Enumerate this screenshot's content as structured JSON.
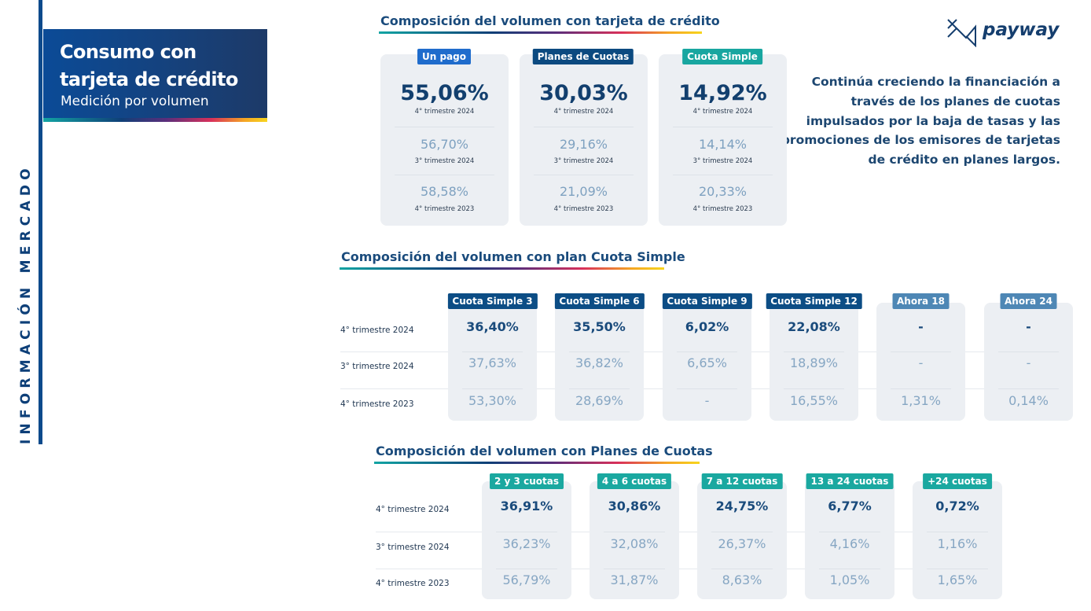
{
  "sidebar": {
    "vertical_label": "INFORMACIÓN MERCADO"
  },
  "header": {
    "title_line1": "Consumo con",
    "title_line2": "tarjeta de crédito",
    "subtitle": "Medición por volumen"
  },
  "logo": {
    "text": "payway"
  },
  "note": "Continúa creciendo la financiación a través de los planes de cuotas impulsados por la baja de tasas y las promociones de los emisores de tarjetas de crédito en planes largos.",
  "colors": {
    "navy": "#0c4a80",
    "blue": "#1f6ccc",
    "teal": "#18a6a0",
    "steel": "#4e87b5"
  },
  "section1": {
    "title": "Composición del volumen con tarjeta de crédito",
    "cards": [
      {
        "label": "Un pago",
        "color": "#1f6ccc",
        "values": [
          {
            "value": "55,06%",
            "period": "4° trimestre 2024"
          },
          {
            "value": "56,70%",
            "period": "3° trimestre 2024"
          },
          {
            "value": "58,58%",
            "period": "4° trimestre 2023"
          }
        ]
      },
      {
        "label": "Planes de Cuotas",
        "color": "#0c4a80",
        "values": [
          {
            "value": "30,03%",
            "period": "4° trimestre 2024"
          },
          {
            "value": "29,16%",
            "period": "3° trimestre 2024"
          },
          {
            "value": "21,09%",
            "period": "4° trimestre 2023"
          }
        ]
      },
      {
        "label": "Cuota Simple",
        "color": "#18a6a0",
        "values": [
          {
            "value": "14,92%",
            "period": "4° trimestre 2024"
          },
          {
            "value": "14,14%",
            "period": "3° trimestre 2024"
          },
          {
            "value": "20,33%",
            "period": "4° trimestre 2023"
          }
        ]
      }
    ]
  },
  "section2": {
    "title": "Composición del volumen con plan Cuota Simple",
    "rows": [
      "4° trimestre 2024",
      "3° trimestre 2024",
      "4° trimestre 2023"
    ],
    "columns": [
      {
        "label": "Cuota Simple 3",
        "color": "#0c4d85",
        "values": [
          "36,40%",
          "37,63%",
          "53,30%"
        ]
      },
      {
        "label": "Cuota Simple 6",
        "color": "#0c4d85",
        "values": [
          "35,50%",
          "36,82%",
          "28,69%"
        ]
      },
      {
        "label": "Cuota Simple 9",
        "color": "#0c4d85",
        "values": [
          "6,02%",
          "6,65%",
          "-"
        ]
      },
      {
        "label": "Cuota Simple 12",
        "color": "#0c4d85",
        "values": [
          "22,08%",
          "18,89%",
          "16,55%"
        ]
      },
      {
        "label": "Ahora 18",
        "color": "#4e87b5",
        "values": [
          "-",
          "-",
          "1,31%"
        ]
      },
      {
        "label": "Ahora 24",
        "color": "#4e87b5",
        "values": [
          "-",
          "-",
          "0,14%"
        ]
      }
    ]
  },
  "section3": {
    "title": "Composición del volumen con Planes de Cuotas",
    "rows": [
      "4° trimestre 2024",
      "3° trimestre 2024",
      "4° trimestre 2023"
    ],
    "columns": [
      {
        "label": "2 y 3 cuotas",
        "color": "#1aa8a0",
        "values": [
          "36,91%",
          "36,23%",
          "56,79%"
        ]
      },
      {
        "label": "4 a 6 cuotas",
        "color": "#1aa8a0",
        "values": [
          "30,86%",
          "32,08%",
          "31,87%"
        ]
      },
      {
        "label": "7 a 12 cuotas",
        "color": "#1aa8a0",
        "values": [
          "24,75%",
          "26,37%",
          "8,63%"
        ]
      },
      {
        "label": "13 a 24 cuotas",
        "color": "#1aa8a0",
        "values": [
          "6,77%",
          "4,16%",
          "1,05%"
        ]
      },
      {
        "label": "+24 cuotas",
        "color": "#1aa8a0",
        "values": [
          "0,72%",
          "1,16%",
          "1,65%"
        ]
      }
    ]
  }
}
